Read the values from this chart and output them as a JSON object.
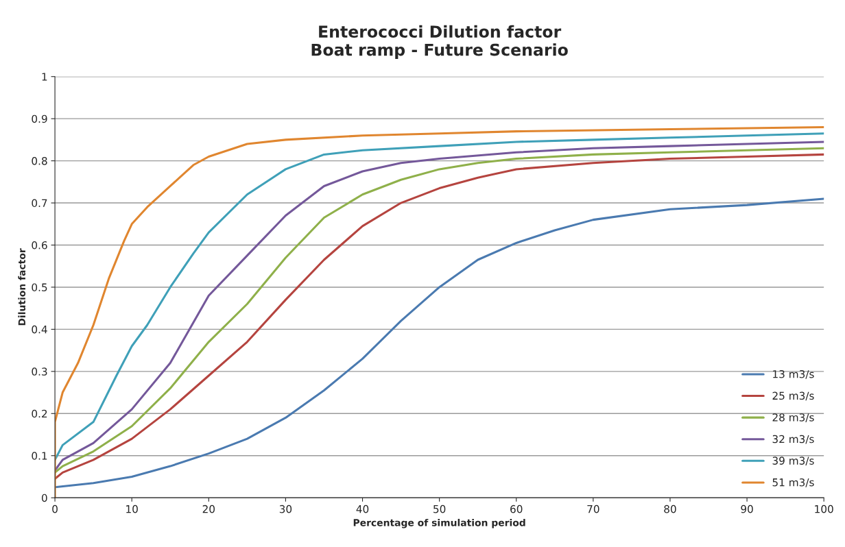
{
  "chart_data": {
    "type": "line",
    "title": "Enterococci Dilution factor\nBoat ramp - Future Scenario",
    "xlabel": "Percentage of simulation period",
    "ylabel": "Dilution factor",
    "xlim": [
      0,
      100
    ],
    "xticks": [
      0,
      10,
      20,
      30,
      40,
      50,
      60,
      70,
      80,
      90,
      100
    ],
    "ylim": [
      0,
      1
    ],
    "yticks": [
      0,
      0.1,
      0.2,
      0.3,
      0.4,
      0.5,
      0.6,
      0.7,
      0.8,
      0.9,
      1
    ],
    "grid": "y",
    "legend": "bottom right",
    "marker": "none",
    "line_style": "solid",
    "series": [
      {
        "name": "13 m3/s",
        "color": "#4a7ab0",
        "x": [
          0,
          5,
          10,
          15,
          20,
          25,
          30,
          35,
          40,
          45,
          50,
          55,
          60,
          65,
          70,
          80,
          90,
          100
        ],
        "values": [
          0.025,
          0.035,
          0.05,
          0.075,
          0.105,
          0.14,
          0.19,
          0.255,
          0.33,
          0.42,
          0.5,
          0.565,
          0.605,
          0.635,
          0.66,
          0.685,
          0.695,
          0.71
        ]
      },
      {
        "name": "25 m3/s",
        "color": "#b5443f",
        "x": [
          0,
          1,
          5,
          10,
          15,
          20,
          25,
          30,
          35,
          40,
          45,
          50,
          55,
          60,
          70,
          80,
          90,
          100
        ],
        "values": [
          0.045,
          0.06,
          0.09,
          0.14,
          0.21,
          0.29,
          0.37,
          0.47,
          0.565,
          0.645,
          0.7,
          0.735,
          0.76,
          0.78,
          0.795,
          0.805,
          0.81,
          0.815
        ]
      },
      {
        "name": "28 m3/s",
        "color": "#8fb04a",
        "x": [
          0,
          1,
          5,
          10,
          15,
          20,
          25,
          30,
          35,
          40,
          45,
          50,
          55,
          60,
          70,
          80,
          90,
          100
        ],
        "values": [
          0.06,
          0.075,
          0.11,
          0.17,
          0.26,
          0.37,
          0.46,
          0.57,
          0.665,
          0.72,
          0.755,
          0.78,
          0.795,
          0.805,
          0.815,
          0.82,
          0.825,
          0.83
        ]
      },
      {
        "name": "32 m3/s",
        "color": "#74589a",
        "x": [
          0,
          1,
          5,
          10,
          15,
          20,
          25,
          30,
          35,
          40,
          45,
          50,
          60,
          70,
          80,
          90,
          100
        ],
        "values": [
          0.065,
          0.09,
          0.13,
          0.21,
          0.32,
          0.48,
          0.575,
          0.67,
          0.74,
          0.775,
          0.795,
          0.805,
          0.82,
          0.83,
          0.835,
          0.84,
          0.845
        ]
      },
      {
        "name": "39 m3/s",
        "color": "#3fa0b8",
        "x": [
          0,
          1,
          5,
          8,
          10,
          12,
          15,
          18,
          20,
          25,
          30,
          35,
          40,
          50,
          60,
          70,
          80,
          90,
          100
        ],
        "values": [
          0.09,
          0.125,
          0.18,
          0.29,
          0.36,
          0.41,
          0.5,
          0.58,
          0.63,
          0.72,
          0.78,
          0.815,
          0.825,
          0.835,
          0.845,
          0.85,
          0.855,
          0.86,
          0.865
        ]
      },
      {
        "name": "51 m3/s",
        "color": "#e0862f",
        "x": [
          0,
          0,
          1,
          3,
          5,
          7,
          9,
          10,
          12,
          15,
          18,
          20,
          25,
          30,
          40,
          50,
          60,
          80,
          100
        ],
        "values": [
          0,
          0.18,
          0.25,
          0.32,
          0.41,
          0.52,
          0.61,
          0.65,
          0.69,
          0.74,
          0.79,
          0.81,
          0.84,
          0.85,
          0.86,
          0.865,
          0.87,
          0.875,
          0.88
        ]
      }
    ]
  }
}
